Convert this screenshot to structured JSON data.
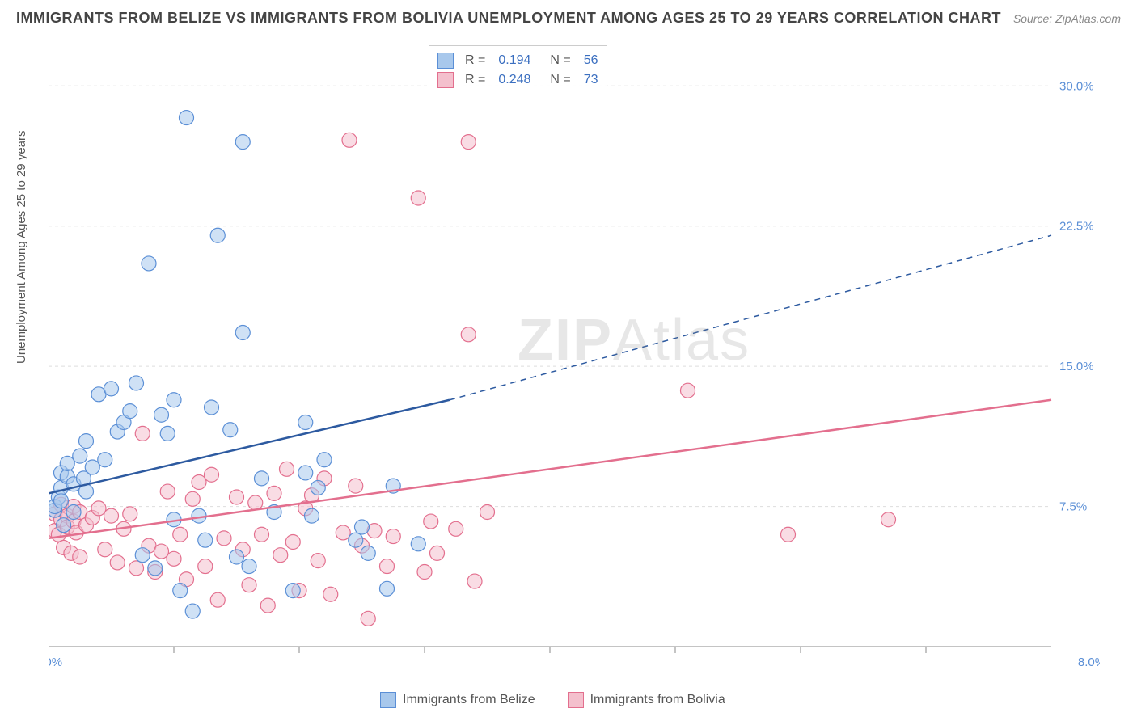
{
  "header": {
    "title": "IMMIGRANTS FROM BELIZE VS IMMIGRANTS FROM BOLIVIA UNEMPLOYMENT AMONG AGES 25 TO 29 YEARS CORRELATION CHART",
    "source": "Source: ZipAtlas.com"
  },
  "chart": {
    "type": "scatter",
    "y_axis_label": "Unemployment Among Ages 25 to 29 years",
    "xlim": [
      0.0,
      8.0
    ],
    "ylim": [
      0.0,
      32.0
    ],
    "x_ticks": [
      0.0,
      8.0
    ],
    "x_tick_labels": [
      "0.0%",
      "8.0%"
    ],
    "x_minor_ticks": [
      1.0,
      2.0,
      3.0,
      4.0,
      5.0,
      6.0,
      7.0
    ],
    "y_ticks": [
      7.5,
      15.0,
      22.5,
      30.0
    ],
    "y_tick_labels": [
      "7.5%",
      "15.0%",
      "22.5%",
      "30.0%"
    ],
    "grid_color": "#dddddd",
    "axis_color": "#888888",
    "background_color": "#ffffff",
    "axis_label_color": "#5b8fd6",
    "marker_radius": 9,
    "marker_opacity": 0.55,
    "marker_stroke_width": 1.2,
    "series": [
      {
        "name": "Immigrants from Belize",
        "fill": "#a8c8ec",
        "stroke": "#5b8fd6",
        "r": "0.194",
        "n": "56",
        "trend": {
          "color": "#2d5aa0",
          "width": 2.5,
          "x1": 0.0,
          "y1": 8.2,
          "x2": 3.2,
          "y2": 13.2,
          "x2d": 8.0,
          "y2d": 22.0
        },
        "points": [
          [
            0.05,
            7.3
          ],
          [
            0.05,
            7.5
          ],
          [
            0.08,
            8.0
          ],
          [
            0.1,
            7.8
          ],
          [
            0.1,
            8.5
          ],
          [
            0.1,
            9.3
          ],
          [
            0.12,
            6.5
          ],
          [
            0.15,
            9.1
          ],
          [
            0.15,
            9.8
          ],
          [
            0.2,
            8.7
          ],
          [
            0.2,
            7.2
          ],
          [
            0.25,
            10.2
          ],
          [
            0.28,
            9.0
          ],
          [
            0.3,
            8.3
          ],
          [
            0.3,
            11.0
          ],
          [
            0.35,
            9.6
          ],
          [
            0.4,
            13.5
          ],
          [
            0.45,
            10.0
          ],
          [
            0.5,
            13.8
          ],
          [
            0.55,
            11.5
          ],
          [
            0.6,
            12.0
          ],
          [
            0.65,
            12.6
          ],
          [
            0.7,
            14.1
          ],
          [
            0.75,
            4.9
          ],
          [
            0.8,
            20.5
          ],
          [
            0.85,
            4.2
          ],
          [
            0.9,
            12.4
          ],
          [
            0.95,
            11.4
          ],
          [
            1.0,
            6.8
          ],
          [
            1.0,
            13.2
          ],
          [
            1.05,
            3.0
          ],
          [
            1.1,
            28.3
          ],
          [
            1.15,
            1.9
          ],
          [
            1.2,
            7.0
          ],
          [
            1.25,
            5.7
          ],
          [
            1.3,
            12.8
          ],
          [
            1.35,
            22.0
          ],
          [
            1.45,
            11.6
          ],
          [
            1.5,
            4.8
          ],
          [
            1.55,
            16.8
          ],
          [
            1.6,
            4.3
          ],
          [
            1.55,
            27.0
          ],
          [
            1.7,
            9.0
          ],
          [
            1.8,
            7.2
          ],
          [
            1.95,
            3.0
          ],
          [
            2.05,
            9.3
          ],
          [
            2.1,
            7.0
          ],
          [
            2.15,
            8.5
          ],
          [
            2.2,
            10.0
          ],
          [
            2.45,
            5.7
          ],
          [
            2.5,
            6.4
          ],
          [
            2.55,
            5.0
          ],
          [
            2.7,
            3.1
          ],
          [
            2.75,
            8.6
          ],
          [
            2.95,
            5.5
          ],
          [
            2.05,
            12.0
          ]
        ]
      },
      {
        "name": "Immigrants from Bolivia",
        "fill": "#f4c0cd",
        "stroke": "#e36f8e",
        "r": "0.248",
        "n": "73",
        "trend": {
          "color": "#e36f8e",
          "width": 2.5,
          "x1": 0.0,
          "y1": 5.8,
          "x2": 8.0,
          "y2": 13.2
        },
        "points": [
          [
            0.05,
            6.2
          ],
          [
            0.05,
            7.1
          ],
          [
            0.08,
            6.0
          ],
          [
            0.1,
            6.8
          ],
          [
            0.1,
            7.6
          ],
          [
            0.12,
            5.3
          ],
          [
            0.15,
            7.0
          ],
          [
            0.15,
            6.4
          ],
          [
            0.18,
            5.0
          ],
          [
            0.2,
            6.7
          ],
          [
            0.2,
            7.5
          ],
          [
            0.22,
            6.1
          ],
          [
            0.25,
            4.8
          ],
          [
            0.25,
            7.2
          ],
          [
            0.3,
            6.5
          ],
          [
            0.35,
            6.9
          ],
          [
            0.4,
            7.4
          ],
          [
            0.45,
            5.2
          ],
          [
            0.5,
            7.0
          ],
          [
            0.55,
            4.5
          ],
          [
            0.6,
            6.3
          ],
          [
            0.65,
            7.1
          ],
          [
            0.7,
            4.2
          ],
          [
            0.75,
            11.4
          ],
          [
            0.8,
            5.4
          ],
          [
            0.85,
            4.0
          ],
          [
            0.9,
            5.1
          ],
          [
            0.95,
            8.3
          ],
          [
            1.0,
            4.7
          ],
          [
            1.05,
            6.0
          ],
          [
            1.1,
            3.6
          ],
          [
            1.15,
            7.9
          ],
          [
            1.2,
            8.8
          ],
          [
            1.25,
            4.3
          ],
          [
            1.3,
            9.2
          ],
          [
            1.35,
            2.5
          ],
          [
            1.4,
            5.8
          ],
          [
            1.5,
            8.0
          ],
          [
            1.55,
            5.2
          ],
          [
            1.6,
            3.3
          ],
          [
            1.65,
            7.7
          ],
          [
            1.7,
            6.0
          ],
          [
            1.75,
            2.2
          ],
          [
            1.8,
            8.2
          ],
          [
            1.85,
            4.9
          ],
          [
            1.9,
            9.5
          ],
          [
            1.95,
            5.6
          ],
          [
            2.0,
            3.0
          ],
          [
            2.05,
            7.4
          ],
          [
            2.1,
            8.1
          ],
          [
            2.15,
            4.6
          ],
          [
            2.2,
            9.0
          ],
          [
            2.25,
            2.8
          ],
          [
            2.35,
            6.1
          ],
          [
            2.4,
            27.1
          ],
          [
            2.45,
            8.6
          ],
          [
            2.5,
            5.4
          ],
          [
            2.55,
            1.5
          ],
          [
            2.6,
            6.2
          ],
          [
            2.7,
            4.3
          ],
          [
            2.75,
            5.9
          ],
          [
            2.95,
            24.0
          ],
          [
            3.0,
            4.0
          ],
          [
            3.05,
            6.7
          ],
          [
            3.1,
            5.0
          ],
          [
            3.25,
            6.3
          ],
          [
            3.35,
            16.7
          ],
          [
            3.4,
            3.5
          ],
          [
            3.5,
            7.2
          ],
          [
            5.1,
            13.7
          ],
          [
            5.9,
            6.0
          ],
          [
            6.7,
            6.8
          ],
          [
            3.35,
            27.0
          ]
        ]
      }
    ],
    "bottom_legend": [
      {
        "label": "Immigrants from Belize",
        "fill": "#a8c8ec",
        "stroke": "#5b8fd6"
      },
      {
        "label": "Immigrants from Bolivia",
        "fill": "#f4c0cd",
        "stroke": "#e36f8e"
      }
    ],
    "watermark": "ZIPAtlas"
  }
}
